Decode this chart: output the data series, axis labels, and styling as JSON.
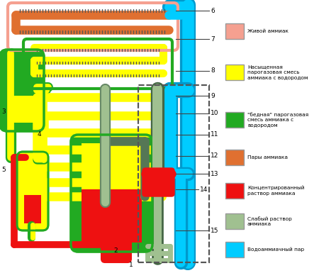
{
  "bg": "#ffffff",
  "colors": {
    "pink": "#f5a090",
    "orange": "#e07030",
    "yellow": "#ffff00",
    "green": "#22aa22",
    "red": "#ee1111",
    "light_green": "#a0c090",
    "cyan": "#00ccff",
    "dark": "#222222"
  },
  "legend": [
    {
      "color": "#f5a090",
      "lines": [
        "Живой аммиак"
      ]
    },
    {
      "color": "#ffff00",
      "lines": [
        "Насыщенная",
        "парогазовая смесь",
        "аммиака с водородом"
      ]
    },
    {
      "color": "#22aa22",
      "lines": [
        "\"бедная\" парогазовая",
        "смесь аммиака с",
        "водородом"
      ]
    },
    {
      "color": "#e07030",
      "lines": [
        "Пары аммиака"
      ]
    },
    {
      "color": "#ee1111",
      "lines": [
        "Концентрированный",
        "раствор аммиака"
      ]
    },
    {
      "color": "#a0c090",
      "lines": [
        "Слабый раствор",
        "аммиака"
      ]
    },
    {
      "color": "#00ccff",
      "lines": [
        "Водоаммиачный пар"
      ]
    }
  ]
}
